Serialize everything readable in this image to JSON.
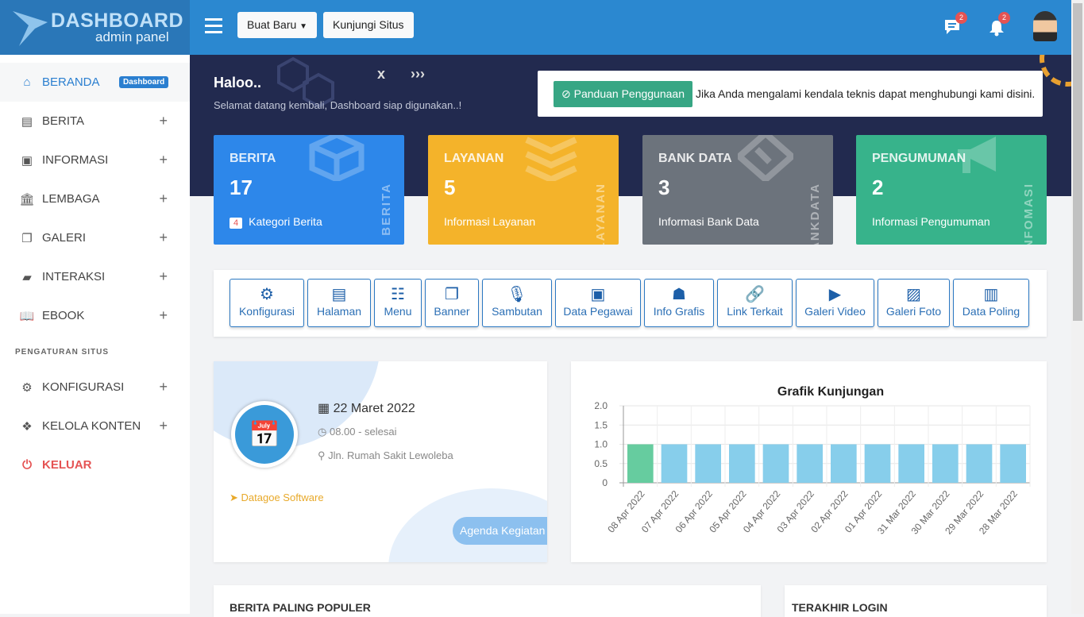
{
  "logo": {
    "title": "DASHBOARD",
    "subtitle": "admin panel"
  },
  "header": {
    "create_label": "Buat Baru",
    "visit_label": "Kunjungi Situs",
    "messages_count": "2",
    "notifications_count": "2"
  },
  "sidebar": {
    "items": [
      {
        "label": "BERANDA",
        "icon": "home-icon",
        "badge": "Dashboard"
      },
      {
        "label": "BERITA",
        "icon": "newspaper-icon"
      },
      {
        "label": "INFORMASI",
        "icon": "inbox-icon"
      },
      {
        "label": "LEMBAGA",
        "icon": "bank-icon"
      },
      {
        "label": "GALERI",
        "icon": "images-icon"
      },
      {
        "label": "INTERAKSI",
        "icon": "comments-icon"
      },
      {
        "label": "EBOOK",
        "icon": "book-icon"
      }
    ],
    "section": "PENGATURAN SITUS",
    "settings": [
      {
        "label": "KONFIGURASI",
        "icon": "cogs-icon"
      },
      {
        "label": "KELOLA KONTEN",
        "icon": "dropbox-icon"
      }
    ],
    "logout": "KELUAR"
  },
  "hero": {
    "greeting": "Haloo..",
    "welcome": "Selamat datang kembali, Dashboard siap digunakan..!",
    "guide_button": "Panduan Penggunaan",
    "help_text": "Jika Anda mengalami kendala teknis dapat menghubungi kami disini."
  },
  "cards": [
    {
      "title": "BERITA",
      "count": "17",
      "badge": "4",
      "sub": "Kategori Berita",
      "vertical": "BERITA",
      "color": "#2d87ea"
    },
    {
      "title": "LAYANAN",
      "count": "5",
      "sub": "Informasi Layanan",
      "vertical": "LAYANAN",
      "color": "#f4b32a"
    },
    {
      "title": "BANK DATA",
      "count": "3",
      "sub": "Informasi Bank Data",
      "vertical": "BANKDATA",
      "color": "#6c737c"
    },
    {
      "title": "PENGUMUMAN",
      "count": "2",
      "sub": "Informasi Pengumuman",
      "vertical": "INFOMASI",
      "color": "#37b38b"
    }
  ],
  "quick": [
    "Konfigurasi",
    "Halaman",
    "Menu",
    "Banner",
    "Sambutan",
    "Data Pegawai",
    "Info Grafis",
    "Link Terkait",
    "Galeri Video",
    "Galeri Foto",
    "Data Poling"
  ],
  "event": {
    "date": "22 Maret 2022",
    "time": "08.00 - selesai",
    "place": "Jln. Rumah Sakit Lewoleba",
    "organizer": "Datagoe Software",
    "button": "Agenda Kegiatan"
  },
  "chart_data": {
    "type": "bar",
    "title": "Grafik Kunjungan",
    "categories": [
      "08 Apr 2022",
      "07 Apr 2022",
      "06 Apr 2022",
      "05 Apr 2022",
      "04 Apr 2022",
      "03 Apr 2022",
      "02 Apr 2022",
      "01 Apr 2022",
      "31 Mar 2022",
      "30 Mar 2022",
      "29 Mar 2022",
      "28 Mar 2022"
    ],
    "values": [
      1,
      1,
      1,
      1,
      1,
      1,
      1,
      1,
      1,
      1,
      1,
      1
    ],
    "ylim": [
      0,
      2
    ],
    "yticks": [
      "2.0",
      "1.5",
      "1.0",
      "0.5",
      "0"
    ],
    "grid": true,
    "colors": {
      "first": "#66cc9f",
      "rest": "#87ceeb"
    }
  },
  "bottom": {
    "popular": "BERITA PALING POPULER",
    "last_login": "TERAKHIR LOGIN"
  }
}
